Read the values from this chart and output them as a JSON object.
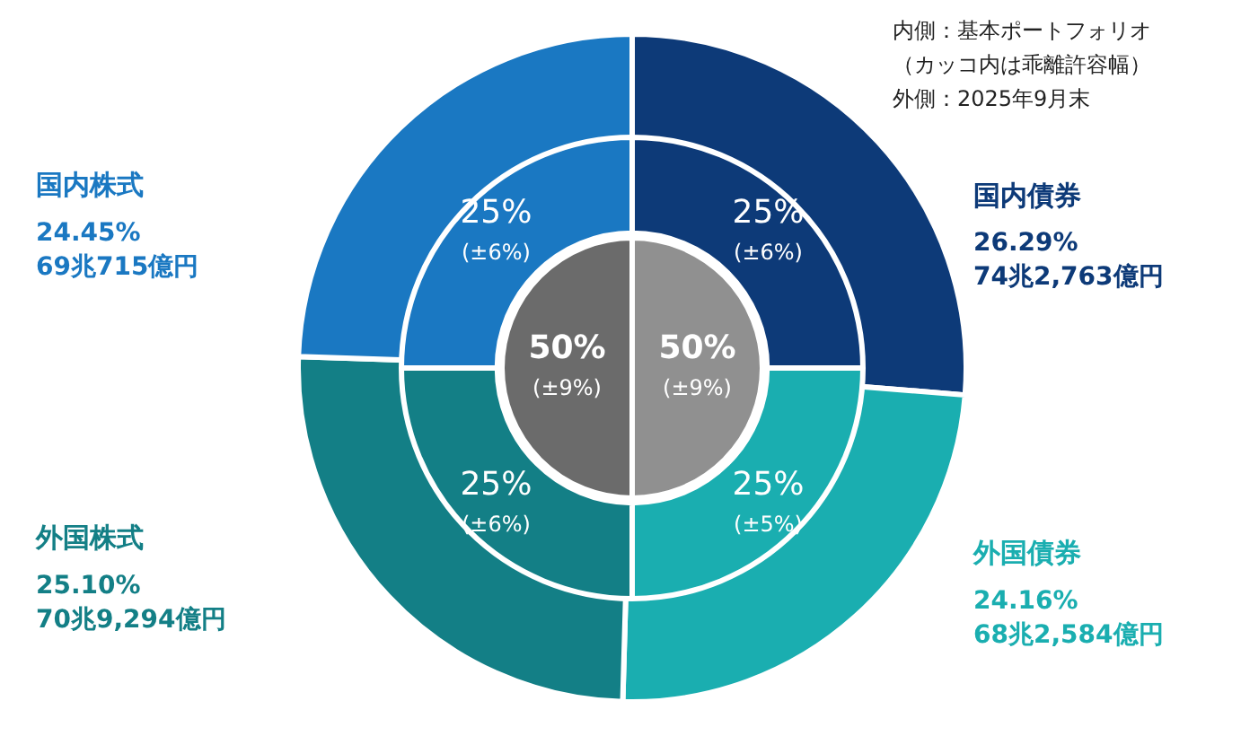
{
  "chart_data": [
    {
      "type": "donut",
      "categories": [
        "国内債券",
        "外国債券",
        "外国株式",
        "国内株式"
      ],
      "values": [
        26.29,
        24.16,
        25.1,
        24.45
      ],
      "colors": [
        "#0d3a78",
        "#1aaeb0",
        "#137f86",
        "#1a78c2"
      ],
      "value_labels": [
        "26.29%\n74兆2,763億円",
        "24.16%\n68兆2,584億円",
        "25.10%\n70兆9,294億円",
        "24.45%\n69兆715億円"
      ],
      "annotations": [
        "内側：基本ポートフォリオ",
        "（カッコ内は乖離許容幅）",
        "外側：2025年9月末"
      ]
    },
    {
      "type": "donut",
      "categories": [
        null,
        null,
        null,
        null
      ],
      "values": [
        25,
        25,
        25,
        25
      ],
      "colors": [
        "#0d3a78",
        "#1aaeb0",
        "#137f86",
        "#1a78c2"
      ],
      "value_labels": [
        "25%\n(±6%)",
        "25%\n(±5%)",
        "25%\n(±6%)",
        "25%\n(±6%)"
      ]
    },
    {
      "type": "pie",
      "categories": [
        null,
        null
      ],
      "values": [
        50,
        50
      ],
      "colors": [
        "#909090",
        "#6b6b6b"
      ],
      "value_labels": [
        "50%\n(±9%)",
        "50%\n(±9%)"
      ]
    }
  ]
}
